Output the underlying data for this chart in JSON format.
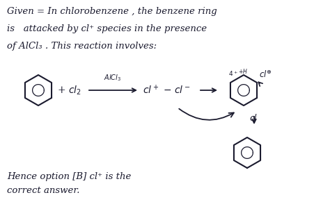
{
  "bg_color": "#ffffff",
  "text_color": "#1a1a2e",
  "line1": "Given = In chlorobenzene , the benzene ring",
  "line2": "is   attacked by cl⁺ species in the presence",
  "line3": "of AlCl₃ . This reaction involves:",
  "conclusion1": "Hence option [B] cl⁺ is the",
  "conclusion2": "correct answer.",
  "font_size_main": 9.5
}
